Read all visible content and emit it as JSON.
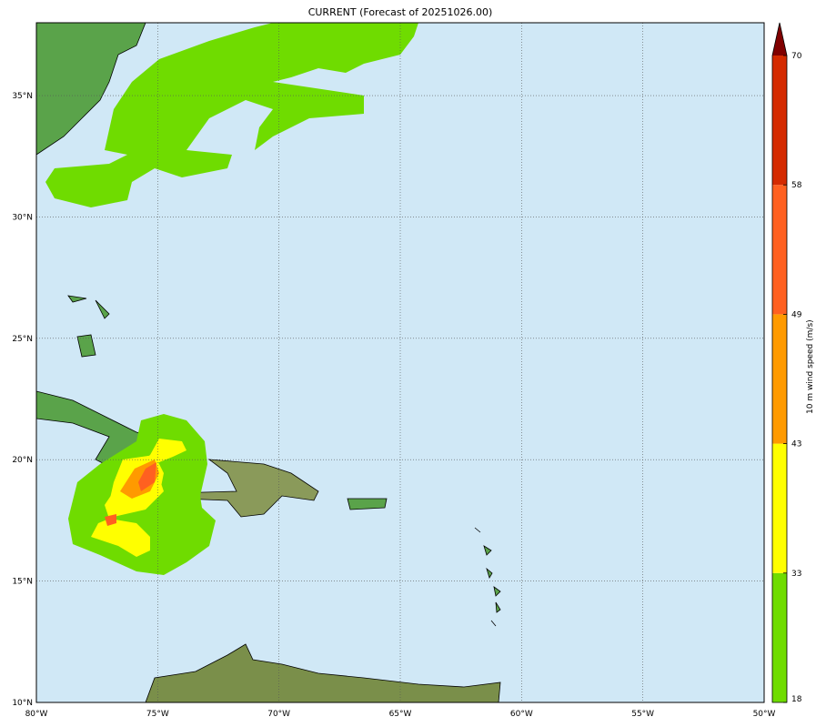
{
  "title": "CURRENT (Forecast of 20251026.00)",
  "map": {
    "lon_range": [
      -80,
      -50
    ],
    "lat_range": [
      10,
      38
    ],
    "lon_ticks": [
      {
        "v": -80,
        "label": "80°W"
      },
      {
        "v": -75,
        "label": "75°W"
      },
      {
        "v": -70,
        "label": "70°W"
      },
      {
        "v": -65,
        "label": "65°W"
      },
      {
        "v": -60,
        "label": "60°W"
      },
      {
        "v": -55,
        "label": "55°W"
      },
      {
        "v": -50,
        "label": "50°W"
      }
    ],
    "lat_ticks": [
      {
        "v": 10,
        "label": "10°N"
      },
      {
        "v": 15,
        "label": "15°N"
      },
      {
        "v": 20,
        "label": "20°N"
      },
      {
        "v": 25,
        "label": "25°N"
      },
      {
        "v": 30,
        "label": "30°N"
      },
      {
        "v": 35,
        "label": "35°N"
      }
    ],
    "grid": true,
    "ocean_color": "#d0e8f6"
  },
  "colorbar": {
    "label": "10 m wind speed (m/s)",
    "levels": [
      18,
      33,
      43,
      49,
      58,
      70
    ],
    "level_labels": [
      "18",
      "33",
      "43",
      "49",
      "58",
      "70"
    ],
    "colors": [
      "#6fdc00",
      "#ffff00",
      "#ff9a00",
      "#ff6020",
      "#d42a00"
    ],
    "extend_color": "#800000",
    "extend": "max"
  }
}
